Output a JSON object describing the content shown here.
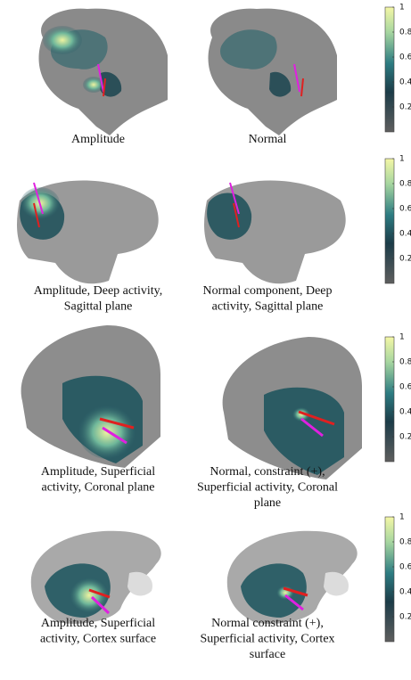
{
  "rows": [
    {
      "left": [
        "Amplitude"
      ],
      "right": [
        "Normal"
      ]
    },
    {
      "left": [
        "Amplitude, Deep activity,",
        "Sagittal plane"
      ],
      "right": [
        "Normal component, Deep",
        "activity, Sagittal plane"
      ]
    },
    {
      "left": [
        "Amplitude, Superficial",
        "activity, Coronal plane"
      ],
      "right": [
        "Normal, constraint (+),",
        "Superficial activity, Coronal",
        "plane"
      ]
    },
    {
      "left": [
        "Amplitude, Superficial",
        "activity, Cortex surface"
      ],
      "right": [
        "Normal constraint (+),",
        "Superficial activity, Cortex",
        "surface"
      ]
    }
  ],
  "colorbar": {
    "lim": [
      0,
      1
    ],
    "ticks": [
      0.2,
      0.4,
      0.6,
      0.8,
      1
    ]
  }
}
